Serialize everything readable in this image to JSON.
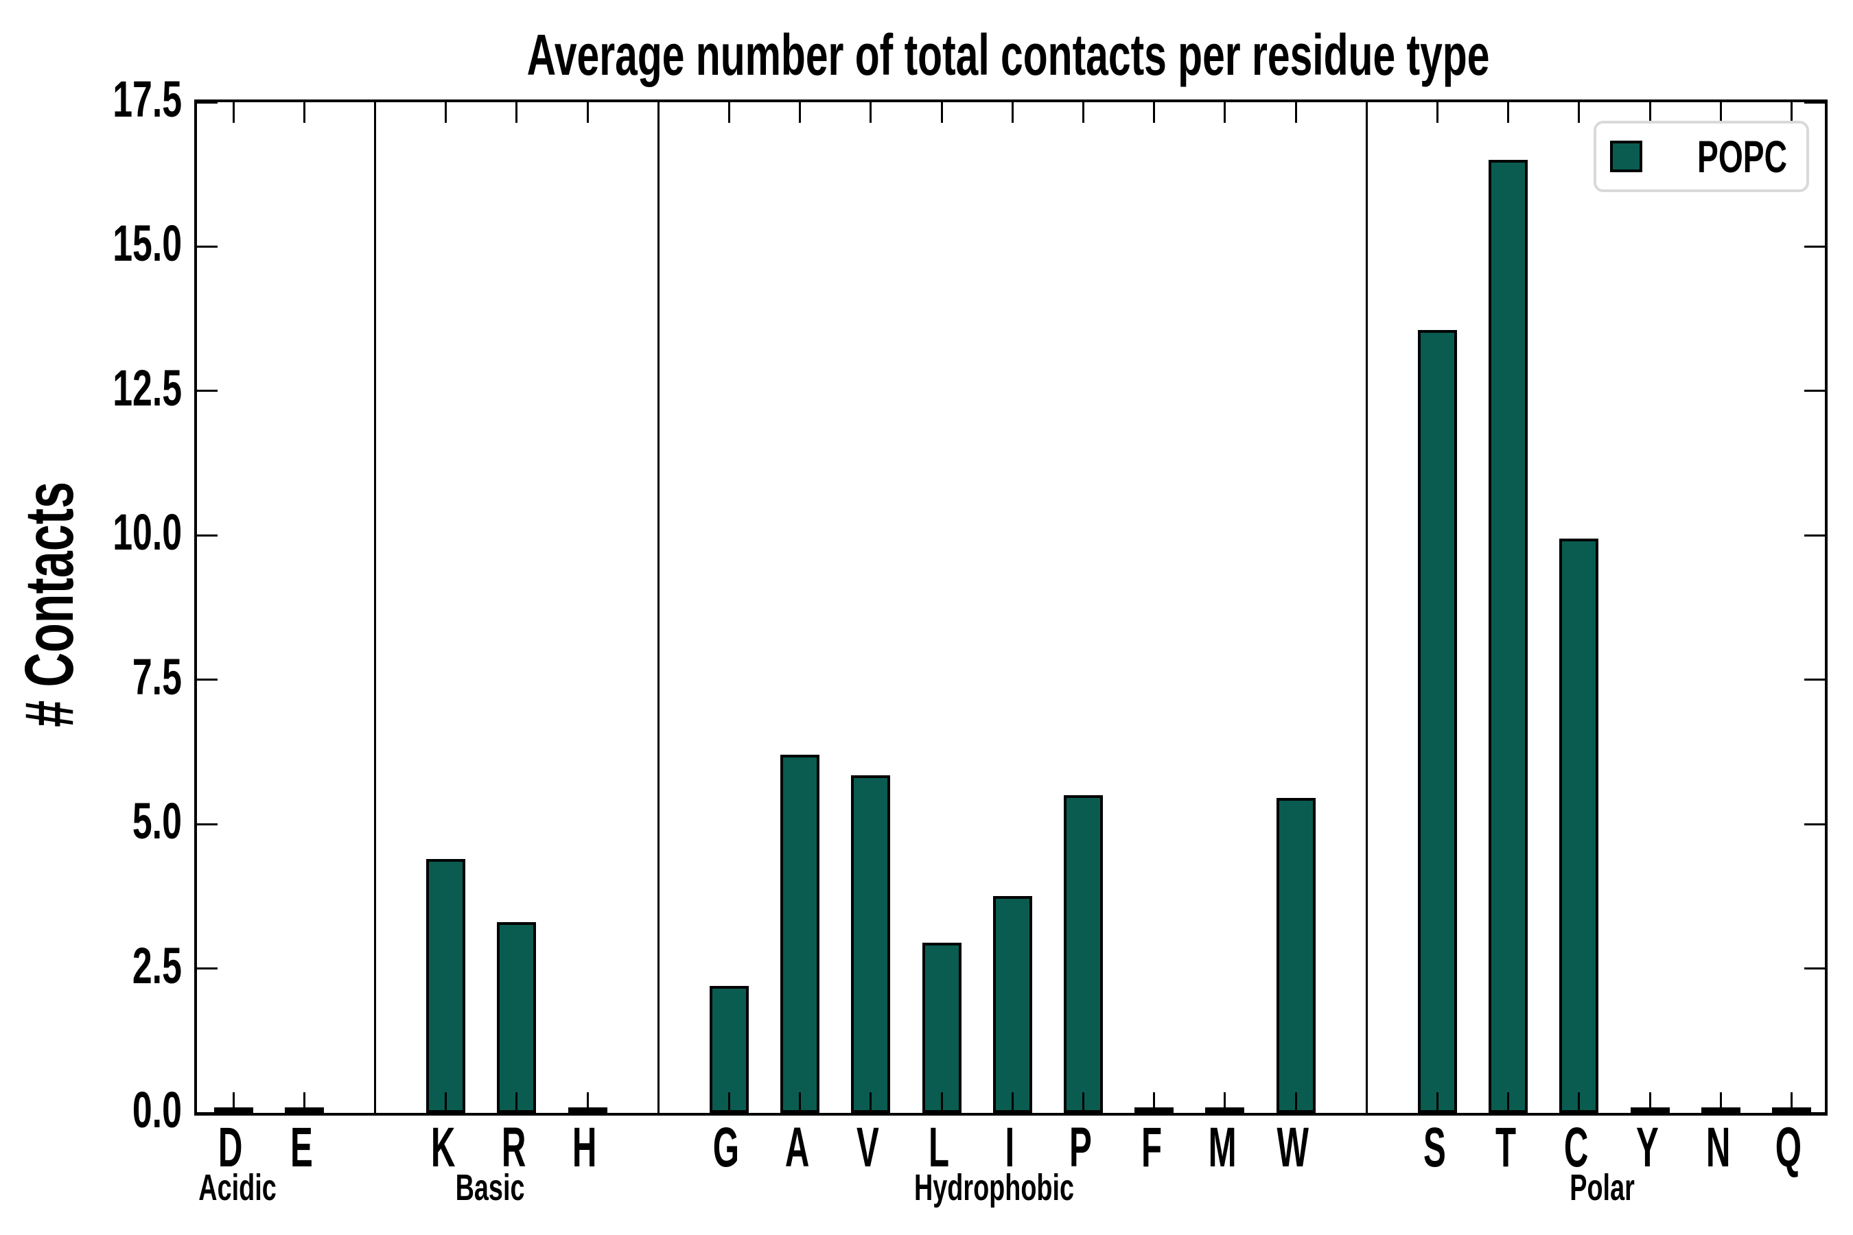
{
  "chart_data": {
    "type": "bar",
    "title": "Average number of total contacts per residue type",
    "ylabel": "# Contacts",
    "xlabel": "",
    "ylim": [
      0,
      17.5
    ],
    "yticks": [
      0.0,
      2.5,
      5.0,
      7.5,
      10.0,
      12.5,
      15.0,
      17.5
    ],
    "grid": false,
    "legend": [
      "POPC"
    ],
    "legend_position": "upper right",
    "groups": [
      {
        "label": "Acidic",
        "categories": [
          "D",
          "E"
        ],
        "values": [
          0.04,
          0.04
        ]
      },
      {
        "label": "Basic",
        "categories": [
          "K",
          "R",
          "H"
        ],
        "values": [
          4.4,
          3.3,
          0.04
        ]
      },
      {
        "label": "Hydrophobic",
        "categories": [
          "G",
          "A",
          "V",
          "L",
          "I",
          "P",
          "F",
          "M",
          "W"
        ],
        "values": [
          2.2,
          6.2,
          5.85,
          2.95,
          3.75,
          5.5,
          0.04,
          0.04,
          5.45
        ]
      },
      {
        "label": "Polar",
        "categories": [
          "S",
          "T",
          "C",
          "Y",
          "N",
          "Q"
        ],
        "values": [
          13.55,
          16.5,
          9.95,
          0.04,
          0.04,
          0.04
        ]
      }
    ]
  },
  "colors": {
    "bar_fill": "#0a5c51",
    "bar_edge": "#000000",
    "axis": "#000000",
    "legend_border": "#d9d9d9",
    "background": "#ffffff"
  }
}
